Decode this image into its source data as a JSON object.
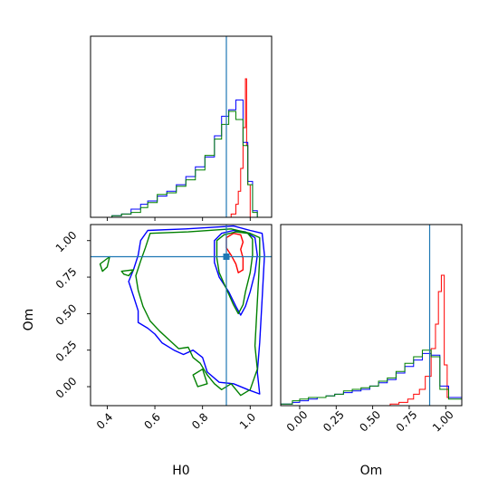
{
  "chart_data": {
    "type": "corner",
    "parameters": [
      "H0",
      "Om"
    ],
    "truths": {
      "H0": 0.9,
      "Om": 0.89
    },
    "colors": {
      "red": "#ff0000",
      "blue": "#0000ff",
      "green": "#008000",
      "truth": "#1f77b4"
    },
    "panels": {
      "h0_hist": {
        "xlim": [
          0.33,
          1.09
        ],
        "ylim": [
          0,
          1
        ],
        "series": [
          {
            "color": "red",
            "edges": [
              0.92,
              0.94,
              0.95,
              0.96,
              0.97,
              0.98,
              0.985,
              0.99,
              1.0,
              1.05
            ],
            "counts": [
              0.02,
              0.08,
              0.16,
              0.3,
              0.55,
              0.85,
              0.44,
              0.2,
              0.0
            ]
          },
          {
            "color": "blue",
            "edges": [
              0.36,
              0.42,
              0.46,
              0.5,
              0.54,
              0.57,
              0.61,
              0.65,
              0.69,
              0.73,
              0.77,
              0.81,
              0.85,
              0.88,
              0.91,
              0.94,
              0.97,
              0.99,
              1.01,
              1.03,
              1.05
            ],
            "counts": [
              0.0,
              0.01,
              0.02,
              0.05,
              0.08,
              0.1,
              0.13,
              0.16,
              0.2,
              0.25,
              0.31,
              0.37,
              0.5,
              0.62,
              0.66,
              0.72,
              0.46,
              0.22,
              0.04,
              0.0
            ]
          },
          {
            "color": "green",
            "edges": [
              0.36,
              0.42,
              0.46,
              0.5,
              0.54,
              0.57,
              0.61,
              0.65,
              0.69,
              0.73,
              0.77,
              0.81,
              0.85,
              0.88,
              0.91,
              0.94,
              0.97,
              0.99,
              1.01,
              1.03,
              1.05
            ],
            "counts": [
              0.0,
              0.01,
              0.02,
              0.03,
              0.06,
              0.09,
              0.14,
              0.15,
              0.19,
              0.23,
              0.29,
              0.38,
              0.48,
              0.57,
              0.65,
              0.6,
              0.44,
              0.2,
              0.03,
              0.0
            ]
          }
        ]
      },
      "joint": {
        "xlim": [
          0.33,
          1.09
        ],
        "ylim": [
          -0.13,
          1.11
        ],
        "xlabel": "H0",
        "ylabel": "Om",
        "xticks": [
          0.4,
          0.6,
          0.8,
          1.0
        ],
        "xtick_labels": [
          "0.4",
          "0.6",
          "0.8",
          "1.0"
        ],
        "yticks": [
          0.0,
          0.25,
          0.5,
          0.75,
          1.0
        ],
        "ytick_labels": [
          "0.00",
          "0.25",
          "0.50",
          "0.75",
          "1.00"
        ],
        "contours": [
          {
            "color": "red",
            "points": [
              [
                0.9,
                1.02
              ],
              [
                0.93,
                1.05
              ],
              [
                0.96,
                1.04
              ],
              [
                0.97,
                0.99
              ],
              [
                0.96,
                0.94
              ],
              [
                0.97,
                0.88
              ],
              [
                0.97,
                0.8
              ],
              [
                0.95,
                0.78
              ],
              [
                0.94,
                0.84
              ],
              [
                0.92,
                0.9
              ],
              [
                0.9,
                0.95
              ]
            ]
          },
          {
            "color": "blue",
            "points": [
              [
                0.85,
                1.0
              ],
              [
                0.88,
                1.05
              ],
              [
                0.93,
                1.07
              ],
              [
                0.98,
                1.06
              ],
              [
                1.02,
                1.02
              ],
              [
                1.03,
                0.9
              ],
              [
                1.02,
                0.78
              ],
              [
                1.0,
                0.65
              ],
              [
                0.98,
                0.55
              ],
              [
                0.96,
                0.49
              ],
              [
                0.94,
                0.55
              ],
              [
                0.91,
                0.65
              ],
              [
                0.87,
                0.75
              ],
              [
                0.85,
                0.85
              ]
            ]
          },
          {
            "color": "green",
            "points": [
              [
                0.86,
                1.0
              ],
              [
                0.89,
                1.04
              ],
              [
                0.94,
                1.06
              ],
              [
                0.99,
                1.05
              ],
              [
                1.01,
                1.01
              ],
              [
                1.01,
                0.9
              ],
              [
                1.0,
                0.78
              ],
              [
                0.98,
                0.65
              ],
              [
                0.97,
                0.56
              ],
              [
                0.95,
                0.5
              ],
              [
                0.93,
                0.56
              ],
              [
                0.9,
                0.67
              ],
              [
                0.87,
                0.78
              ],
              [
                0.86,
                0.88
              ]
            ]
          },
          {
            "color": "blue",
            "points": [
              [
                0.57,
                1.07
              ],
              [
                0.73,
                1.08
              ],
              [
                0.93,
                1.1
              ],
              [
                1.0,
                1.07
              ],
              [
                1.05,
                1.05
              ],
              [
                1.06,
                0.9
              ],
              [
                1.05,
                0.6
              ],
              [
                1.04,
                0.3
              ],
              [
                1.03,
                0.1
              ],
              [
                1.04,
                -0.05
              ],
              [
                0.99,
                -0.02
              ],
              [
                0.93,
                0.02
              ],
              [
                0.87,
                0.03
              ],
              [
                0.82,
                0.1
              ],
              [
                0.8,
                0.2
              ],
              [
                0.76,
                0.25
              ],
              [
                0.72,
                0.22
              ],
              [
                0.68,
                0.25
              ],
              [
                0.63,
                0.3
              ],
              [
                0.6,
                0.36
              ],
              [
                0.57,
                0.4
              ],
              [
                0.53,
                0.44
              ],
              [
                0.53,
                0.52
              ],
              [
                0.51,
                0.62
              ],
              [
                0.49,
                0.72
              ],
              [
                0.51,
                0.8
              ],
              [
                0.53,
                0.9
              ],
              [
                0.54,
                1.0
              ]
            ]
          },
          {
            "color": "green",
            "points": [
              [
                0.58,
                1.05
              ],
              [
                0.74,
                1.06
              ],
              [
                0.92,
                1.08
              ],
              [
                1.0,
                1.05
              ],
              [
                1.04,
                1.02
              ],
              [
                1.04,
                0.88
              ],
              [
                1.03,
                0.58
              ],
              [
                1.02,
                0.28
              ],
              [
                1.03,
                0.12
              ],
              [
                1.0,
                -0.02
              ],
              [
                0.96,
                -0.06
              ],
              [
                0.92,
                0.02
              ],
              [
                0.88,
                -0.02
              ],
              [
                0.85,
                0.02
              ],
              [
                0.82,
                0.08
              ],
              [
                0.79,
                0.16
              ],
              [
                0.76,
                0.2
              ],
              [
                0.74,
                0.27
              ],
              [
                0.7,
                0.26
              ],
              [
                0.66,
                0.32
              ],
              [
                0.62,
                0.38
              ],
              [
                0.58,
                0.45
              ],
              [
                0.55,
                0.55
              ],
              [
                0.53,
                0.66
              ],
              [
                0.52,
                0.76
              ],
              [
                0.54,
                0.86
              ],
              [
                0.56,
                0.95
              ]
            ]
          },
          {
            "color": "green",
            "points": [
              [
                0.37,
                0.84
              ],
              [
                0.41,
                0.89
              ],
              [
                0.4,
                0.82
              ],
              [
                0.38,
                0.79
              ]
            ]
          },
          {
            "color": "green",
            "points": [
              [
                0.46,
                0.79
              ],
              [
                0.51,
                0.8
              ],
              [
                0.49,
                0.76
              ],
              [
                0.47,
                0.77
              ]
            ]
          },
          {
            "color": "green",
            "points": [
              [
                0.76,
                0.08
              ],
              [
                0.8,
                0.12
              ],
              [
                0.82,
                0.02
              ],
              [
                0.78,
                0.0
              ]
            ]
          }
        ]
      },
      "om_hist": {
        "xlim": [
          -0.13,
          1.11
        ],
        "ylim": [
          0,
          1
        ],
        "xlabel": "Om",
        "xticks": [
          0.0,
          0.25,
          0.5,
          0.75,
          1.0
        ],
        "xtick_labels": [
          "0.00",
          "0.25",
          "0.50",
          "0.75",
          "1.00"
        ],
        "series": [
          {
            "color": "red",
            "edges": [
              0.62,
              0.68,
              0.74,
              0.78,
              0.82,
              0.86,
              0.9,
              0.93,
              0.95,
              0.97,
              0.99,
              1.01,
              1.11
            ],
            "counts": [
              0.01,
              0.02,
              0.04,
              0.07,
              0.1,
              0.18,
              0.35,
              0.5,
              0.7,
              0.8,
              0.25,
              0.05
            ]
          },
          {
            "color": "blue",
            "edges": [
              -0.13,
              -0.05,
              0.0,
              0.06,
              0.12,
              0.18,
              0.24,
              0.3,
              0.36,
              0.42,
              0.48,
              0.54,
              0.6,
              0.66,
              0.72,
              0.78,
              0.84,
              0.9,
              0.96,
              1.02,
              1.11
            ],
            "counts": [
              0.01,
              0.02,
              0.03,
              0.04,
              0.05,
              0.06,
              0.07,
              0.08,
              0.09,
              0.1,
              0.12,
              0.14,
              0.16,
              0.2,
              0.24,
              0.28,
              0.32,
              0.31,
              0.12,
              0.05
            ]
          },
          {
            "color": "green",
            "edges": [
              -0.13,
              -0.05,
              0.0,
              0.06,
              0.12,
              0.18,
              0.24,
              0.3,
              0.36,
              0.42,
              0.48,
              0.54,
              0.6,
              0.66,
              0.72,
              0.78,
              0.84,
              0.9,
              0.96,
              1.02,
              1.11
            ],
            "counts": [
              0.01,
              0.03,
              0.04,
              0.05,
              0.05,
              0.06,
              0.07,
              0.09,
              0.1,
              0.11,
              0.12,
              0.15,
              0.17,
              0.21,
              0.26,
              0.3,
              0.34,
              0.3,
              0.1,
              0.04
            ]
          }
        ]
      }
    }
  }
}
